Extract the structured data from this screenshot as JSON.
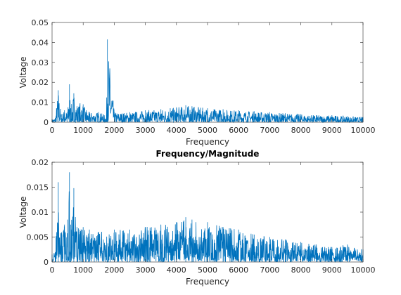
{
  "chart_data": [
    {
      "type": "line",
      "title": "",
      "xlabel": "Frequency",
      "ylabel": "Voltage",
      "xlim": [
        0,
        10000
      ],
      "ylim": [
        0,
        0.05
      ],
      "xticks": [
        "0",
        "1000",
        "2000",
        "3000",
        "4000",
        "5000",
        "6000",
        "7000",
        "8000",
        "9000",
        "10000"
      ],
      "yticks": [
        "0",
        "0.01",
        "0.02",
        "0.03",
        "0.04",
        "0.05"
      ],
      "grid": false,
      "color": "#0072BD",
      "series": [
        {
          "name": "",
          "x": [
            0,
            100,
            200,
            300,
            400,
            500,
            560,
            600,
            700,
            800,
            900,
            1000,
            1100,
            1200,
            1500,
            1750,
            1780,
            2000,
            2500,
            3000,
            3500,
            3800,
            4000,
            4300,
            4500,
            5000,
            5500,
            6000,
            6500,
            7000,
            7500,
            8000,
            8500,
            9000,
            9500,
            10000
          ],
          "y": [
            0.0015,
            0.002,
            0.016,
            0.004,
            0.006,
            0.005,
            0.019,
            0.007,
            0.0145,
            0.008,
            0.0095,
            0.009,
            0.006,
            0.005,
            0.005,
            0.0035,
            0.0415,
            0.005,
            0.005,
            0.006,
            0.0065,
            0.007,
            0.0075,
            0.0085,
            0.008,
            0.007,
            0.0065,
            0.006,
            0.0055,
            0.005,
            0.0045,
            0.004,
            0.0035,
            0.0035,
            0.003,
            0.0025
          ]
        }
      ]
    },
    {
      "type": "line",
      "title": "Frequency/Magnitude",
      "xlabel": "Frequency",
      "ylabel": "Voltage",
      "xlim": [
        0,
        10000
      ],
      "ylim": [
        0,
        0.02
      ],
      "xticks": [
        "0",
        "1000",
        "2000",
        "3000",
        "4000",
        "5000",
        "6000",
        "7000",
        "8000",
        "9000",
        "10000"
      ],
      "yticks": [
        "0",
        "0.005",
        "0.01",
        "0.015",
        "0.02"
      ],
      "grid": false,
      "color": "#0072BD",
      "series": [
        {
          "name": "",
          "x": [
            0,
            100,
            200,
            300,
            400,
            500,
            560,
            600,
            700,
            800,
            900,
            1000,
            1200,
            1500,
            2000,
            2500,
            3000,
            3500,
            4000,
            4300,
            4500,
            5000,
            5500,
            6000,
            6500,
            7000,
            7500,
            8000,
            8500,
            9000,
            9500,
            10000
          ],
          "y": [
            0.0015,
            0.002,
            0.016,
            0.006,
            0.0075,
            0.0085,
            0.018,
            0.0075,
            0.0148,
            0.007,
            0.0065,
            0.007,
            0.0065,
            0.006,
            0.0065,
            0.0065,
            0.007,
            0.0075,
            0.008,
            0.009,
            0.0085,
            0.008,
            0.007,
            0.0065,
            0.0055,
            0.005,
            0.0045,
            0.004,
            0.0035,
            0.003,
            0.0035,
            0.0025
          ]
        }
      ]
    }
  ]
}
